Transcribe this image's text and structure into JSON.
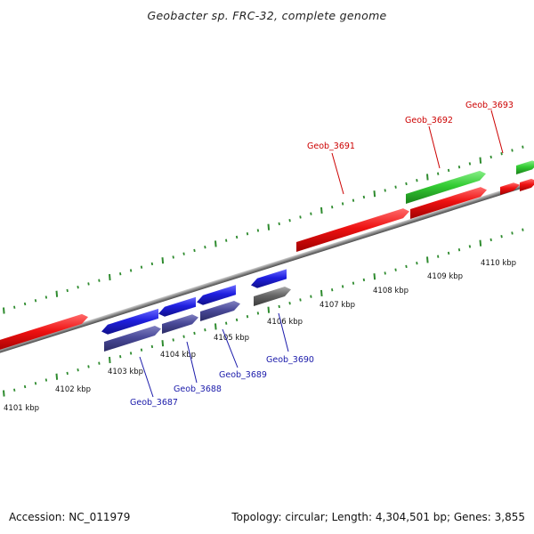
{
  "header": {
    "title": "Geobacter sp. FRC-32, complete genome"
  },
  "footer": {
    "accession": "Accession: NC_011979",
    "summary": "Topology: circular; Length: 4,304,501 bp; Genes: 3,855"
  },
  "colors": {
    "forward_gene": "#ee1111",
    "green_gene": "#33cc33",
    "reverse_blue": "#1f1fe0",
    "reverse_dark": "#4a4a99",
    "reverse_gray": "#666666",
    "backbone": "#888888",
    "tick": "#2e8b2e",
    "label_red": "#cc0000",
    "label_blue": "#1a1aaa"
  },
  "scale": {
    "kbp_labels": [
      "4101 kbp",
      "4102 kbp",
      "4103 kbp",
      "4104 kbp",
      "4105 kbp",
      "4106 kbp",
      "4107 kbp",
      "4108 kbp",
      "4109 kbp",
      "4110 kbp"
    ]
  },
  "genes": {
    "labels": [
      "Geob_3687",
      "Geob_3688",
      "Geob_3689",
      "Geob_3690",
      "Geob_3691",
      "Geob_3692",
      "Geob_3693"
    ]
  }
}
